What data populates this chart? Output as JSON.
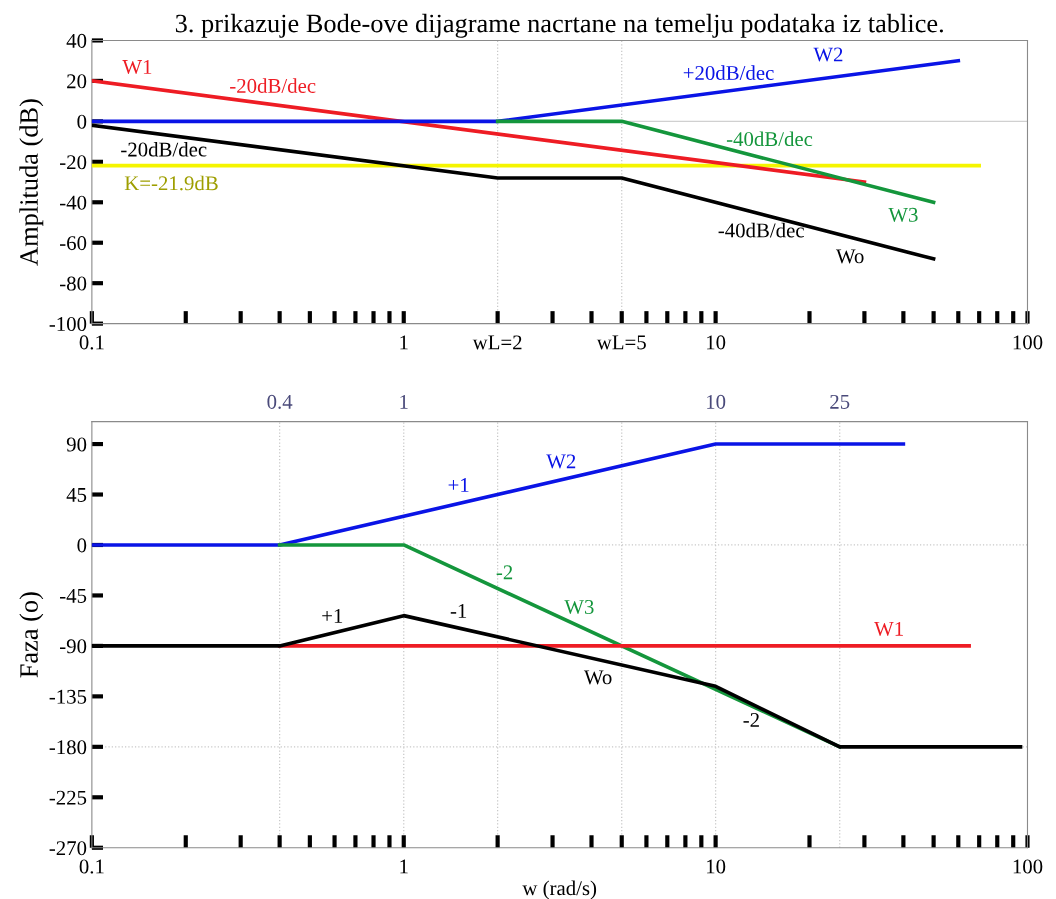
{
  "chart_data": [
    {
      "type": "line",
      "title": "3. prikazuje Bode-ove dijagrame nacrtane na temelju podataka iz tablice.",
      "ylabel": "Amplituda (dB)",
      "log": "x",
      "xlim": [
        0.1,
        100
      ],
      "ylim": [
        -100,
        40
      ],
      "xticks": [
        0.1,
        {
          "value": 0.2,
          "label": null
        },
        {
          "value": 0.3,
          "label": null
        },
        {
          "value": 0.4,
          "label": null
        },
        {
          "value": 0.5,
          "label": null
        },
        {
          "value": 0.6,
          "label": null
        },
        {
          "value": 0.7,
          "label": null
        },
        {
          "value": 0.8,
          "label": null
        },
        {
          "value": 0.9,
          "label": null
        },
        1,
        {
          "value": 2,
          "label": "wL=2"
        },
        {
          "value": 3,
          "label": null
        },
        {
          "value": 4,
          "label": null
        },
        {
          "value": 5,
          "label": "wL=5"
        },
        {
          "value": 6,
          "label": null
        },
        {
          "value": 7,
          "label": null
        },
        {
          "value": 8,
          "label": null
        },
        {
          "value": 9,
          "label": null
        },
        10,
        {
          "value": 20,
          "label": null
        },
        {
          "value": 30,
          "label": null
        },
        {
          "value": 40,
          "label": null
        },
        {
          "value": 50,
          "label": null
        },
        {
          "value": 60,
          "label": null
        },
        {
          "value": 70,
          "label": null
        },
        {
          "value": 80,
          "label": null
        },
        {
          "value": 90,
          "label": null
        },
        100
      ],
      "yticks": [
        -100,
        -80,
        -60,
        -40,
        -20,
        0,
        20,
        40
      ],
      "ref_lines": [
        {
          "axis": "x",
          "value": 2,
          "color": "#c8c8c8",
          "line_style": "dotted"
        },
        {
          "axis": "x",
          "value": 5,
          "color": "#c8c8c8",
          "line_style": "dotted"
        },
        {
          "axis": "y",
          "value": 0,
          "color": "#d0d0d0",
          "line_style": "solid"
        }
      ],
      "series": [
        {
          "color": "#f5f500",
          "x": [
            0.1,
            70
          ],
          "values": [
            -21.9,
            -21.9
          ]
        },
        {
          "color": "#ee1c24",
          "x": [
            0.1,
            30
          ],
          "values": [
            20,
            -30
          ]
        },
        {
          "color": "#0a14e6",
          "x": [
            0.1,
            2,
            60
          ],
          "values": [
            0,
            0,
            30
          ]
        },
        {
          "color": "#14963c",
          "x": [
            2,
            5,
            50
          ],
          "values": [
            0,
            0,
            -40
          ]
        },
        {
          "color": "#000000",
          "x": [
            0.1,
            2,
            5,
            50
          ],
          "values": [
            -2,
            -28,
            -28,
            -68
          ]
        }
      ],
      "annotations": [
        {
          "text": "W1",
          "x": 0.14,
          "y": 17.1
        },
        {
          "text": "-20dB/dec",
          "x": 0.38,
          "y": 8.4
        },
        {
          "text": "-20dB/dec",
          "x": 0.17,
          "y": -6.6
        },
        {
          "text": "K=-21.9dB",
          "x": 0.18,
          "y": -21.9
        },
        {
          "text": "+20dB/dec",
          "x": 11,
          "y": 14.8
        },
        {
          "text": "W2",
          "x": 23,
          "y": 21.2
        },
        {
          "text": "-40dB/dec",
          "x": 14,
          "y": -17.9
        },
        {
          "text": "W3",
          "x": 40,
          "y": -36.1
        },
        {
          "text": "-40dB/dec",
          "x": 14,
          "y": -45.9
        },
        {
          "text": "Wo",
          "x": 27,
          "y": -57.3
        }
      ]
    },
    {
      "type": "line",
      "xlabel": "w (rad/s)",
      "ylabel": "Faza (o)",
      "log": "x",
      "xlim": [
        0.1,
        100
      ],
      "ylim": [
        -270,
        110
      ],
      "xticks": [
        0.1,
        {
          "value": 0.2,
          "label": null
        },
        {
          "value": 0.3,
          "label": null
        },
        {
          "value": 0.4,
          "label": null
        },
        {
          "value": 0.5,
          "label": null
        },
        {
          "value": 0.6,
          "label": null
        },
        {
          "value": 0.7,
          "label": null
        },
        {
          "value": 0.8,
          "label": null
        },
        {
          "value": 0.9,
          "label": null
        },
        1,
        {
          "value": 2,
          "label": null
        },
        {
          "value": 3,
          "label": null
        },
        {
          "value": 4,
          "label": null
        },
        {
          "value": 5,
          "label": null
        },
        {
          "value": 6,
          "label": null
        },
        {
          "value": 7,
          "label": null
        },
        {
          "value": 8,
          "label": null
        },
        {
          "value": 9,
          "label": null
        },
        10,
        {
          "value": 20,
          "label": null
        },
        {
          "value": 30,
          "label": null
        },
        {
          "value": 40,
          "label": null
        },
        {
          "value": 50,
          "label": null
        },
        {
          "value": 60,
          "label": null
        },
        {
          "value": 70,
          "label": null
        },
        {
          "value": 80,
          "label": null
        },
        {
          "value": 90,
          "label": null
        },
        100
      ],
      "yticks": [
        -270,
        -225,
        -180,
        -135,
        -90,
        -45,
        0,
        45,
        90
      ],
      "ref_lines": [
        {
          "axis": "x",
          "value": 0.4,
          "label": "0.4",
          "color": "#c8c8c8",
          "line_style": "dotted"
        },
        {
          "axis": "x",
          "value": 1,
          "label": "1",
          "color": "#c8c8c8",
          "line_style": "dotted"
        },
        {
          "axis": "x",
          "value": 2,
          "color": "#c8c8c8",
          "line_style": "dotted"
        },
        {
          "axis": "x",
          "value": 5,
          "color": "#c8c8c8",
          "line_style": "dotted"
        },
        {
          "axis": "x",
          "value": 10,
          "label": "10",
          "color": "#c8c8c8",
          "line_style": "dotted"
        },
        {
          "axis": "x",
          "value": 25,
          "label": "25",
          "color": "#c8c8c8",
          "line_style": "dotted"
        },
        {
          "axis": "y",
          "value": 0,
          "color": "#c8c8c8",
          "line_style": "dotted"
        },
        {
          "axis": "y",
          "value": -180,
          "color": "#c8c8c8",
          "line_style": "dotted"
        }
      ],
      "series": [
        {
          "color": "#0a14e6",
          "x": [
            0.1,
            0.4,
            10,
            40
          ],
          "values": [
            0,
            0,
            90,
            90
          ]
        },
        {
          "color": "#14963c",
          "x": [
            0.4,
            1,
            25
          ],
          "values": [
            0,
            0,
            -180
          ]
        },
        {
          "color": "#ee1c24",
          "x": [
            0.4,
            65
          ],
          "values": [
            -90,
            -90
          ]
        },
        {
          "color": "#000000",
          "x": [
            0.1,
            0.4,
            1,
            10,
            25,
            95
          ],
          "values": [
            -90,
            -90,
            -63,
            -126,
            -180,
            -180
          ]
        }
      ],
      "annotations": [
        {
          "text": "+1",
          "x": 1.5,
          "y": 37
        },
        {
          "text": "W2",
          "x": 3.2,
          "y": 58.1
        },
        {
          "text": "-2",
          "x": 1.9,
          "y": -35.9
        },
        {
          "text": "W3",
          "x": 3.3,
          "y": -66.8
        },
        {
          "text": "+1",
          "x": 0.59,
          "y": -78.5
        },
        {
          "text": "-1",
          "x": 1.5,
          "y": -74.1
        },
        {
          "text": "Wo",
          "x": 4.2,
          "y": -102.3
        },
        {
          "text": "W1",
          "x": 36,
          "y": -90
        },
        {
          "text": "-2",
          "x": 12.5,
          "y": -139.1
        }
      ]
    }
  ]
}
